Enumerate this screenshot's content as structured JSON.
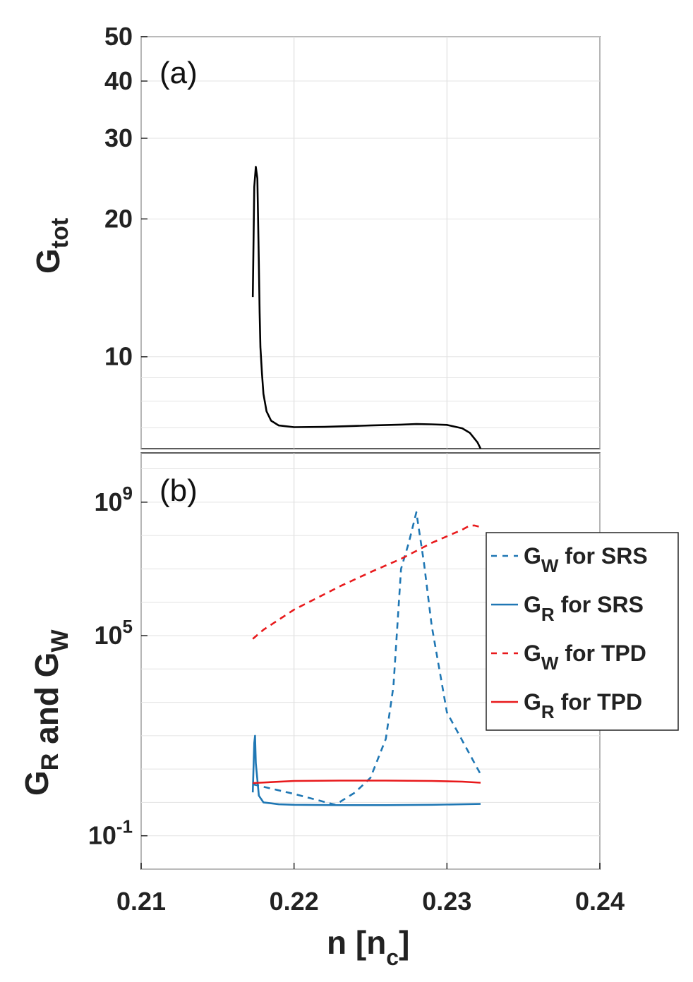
{
  "chart_data": [
    {
      "type": "line",
      "panel_label": "(a)",
      "ylabel": {
        "main": "G",
        "sub": "tot"
      },
      "yscale": "log",
      "ylim": [
        6.3,
        50
      ],
      "xlim": [
        0.21,
        0.24
      ],
      "grid": true,
      "y_ticks": [
        {
          "value": 10,
          "label": "10"
        },
        {
          "value": 20,
          "label": "20"
        },
        {
          "value": 30,
          "label": "30"
        },
        {
          "value": 40,
          "label": "40"
        },
        {
          "value": 50,
          "label": "50"
        }
      ],
      "series": [
        {
          "name": "G_tot",
          "color": "#000000",
          "dash": "solid",
          "x": [
            0.2173,
            0.2174,
            0.2175,
            0.2176,
            0.2177,
            0.21775,
            0.2178,
            0.2179,
            0.218,
            0.2182,
            0.2185,
            0.219,
            0.22,
            0.222,
            0.225,
            0.227,
            0.228,
            0.229,
            0.23,
            0.231,
            0.2315,
            0.232,
            0.2322
          ],
          "y": [
            13.5,
            23.5,
            26.0,
            24.5,
            16.0,
            12.5,
            10.5,
            9.2,
            8.3,
            7.6,
            7.25,
            7.08,
            7.02,
            7.03,
            7.08,
            7.11,
            7.13,
            7.12,
            7.1,
            6.98,
            6.82,
            6.5,
            6.3
          ]
        }
      ]
    },
    {
      "type": "line",
      "panel_label": "(b)",
      "ylabel": {
        "parts": [
          [
            "G",
            "R"
          ],
          [
            " and ",
            ""
          ],
          [
            "G",
            "W"
          ]
        ]
      },
      "yscale": "log",
      "ylim": [
        0.01,
        30000000000
      ],
      "xlim": [
        0.21,
        0.24
      ],
      "grid": true,
      "y_ticks": [
        {
          "value": 0.1,
          "base": "10",
          "exp": "-1"
        },
        {
          "value": 100000,
          "base": "10",
          "exp": "5"
        },
        {
          "value": 1000000000,
          "base": "10",
          "exp": "9"
        }
      ],
      "x_ticks": [
        {
          "value": 0.21,
          "label": "0.21"
        },
        {
          "value": 0.22,
          "label": "0.22"
        },
        {
          "value": 0.23,
          "label": "0.23"
        },
        {
          "value": 0.24,
          "label": "0.24"
        }
      ],
      "xlabel": {
        "main": "n [n",
        "sub": "c",
        "end": "]"
      },
      "legend": {
        "position": "right",
        "entries": [
          {
            "main": "G",
            "sub": "W",
            "rest": " for SRS",
            "series": 0
          },
          {
            "main": "G",
            "sub": "R",
            "rest": " for SRS",
            "series": 1
          },
          {
            "main": "G",
            "sub": "W",
            "rest": " for TPD",
            "series": 2
          },
          {
            "main": "G",
            "sub": "R",
            "rest": " for TPD",
            "series": 3
          }
        ]
      },
      "series": [
        {
          "name": "G_W for SRS",
          "color": "#1f77b4",
          "dash": "dashed",
          "x": [
            0.2173,
            0.22,
            0.2227,
            0.224,
            0.225,
            0.226,
            0.2265,
            0.227,
            0.2275,
            0.228,
            0.2285,
            0.229,
            0.23,
            0.2322
          ],
          "y": [
            3.5,
            1.8,
            0.85,
            2.0,
            5.5,
            80,
            3000,
            10000000,
            60000000,
            500000000,
            15000000,
            200000,
            500,
            7
          ]
        },
        {
          "name": "G_R for SRS",
          "color": "#1f77b4",
          "dash": "solid",
          "x": [
            0.2173,
            0.2174,
            0.21745,
            0.2175,
            0.2177,
            0.218,
            0.219,
            0.22,
            0.223,
            0.226,
            0.229,
            0.2322
          ],
          "y": [
            2.0,
            60,
            100,
            15,
            1.6,
            1.0,
            0.88,
            0.85,
            0.83,
            0.83,
            0.85,
            0.9
          ]
        },
        {
          "name": "G_W for TPD",
          "color": "#e8191b",
          "dash": "dashed",
          "x": [
            0.2173,
            0.218,
            0.22,
            0.223,
            0.225,
            0.227,
            0.229,
            0.231,
            0.2315,
            0.2318,
            0.2322
          ],
          "y": [
            80000,
            150000,
            600000,
            3000000,
            8000000,
            20000000,
            60000000,
            150000000,
            200000000,
            200000000,
            180000000
          ]
        },
        {
          "name": "G_R for TPD",
          "color": "#e8191b",
          "dash": "solid",
          "x": [
            0.2173,
            0.22,
            0.223,
            0.226,
            0.229,
            0.231,
            0.2322
          ],
          "y": [
            3.8,
            4.4,
            4.5,
            4.5,
            4.4,
            4.2,
            3.9
          ]
        }
      ]
    }
  ]
}
